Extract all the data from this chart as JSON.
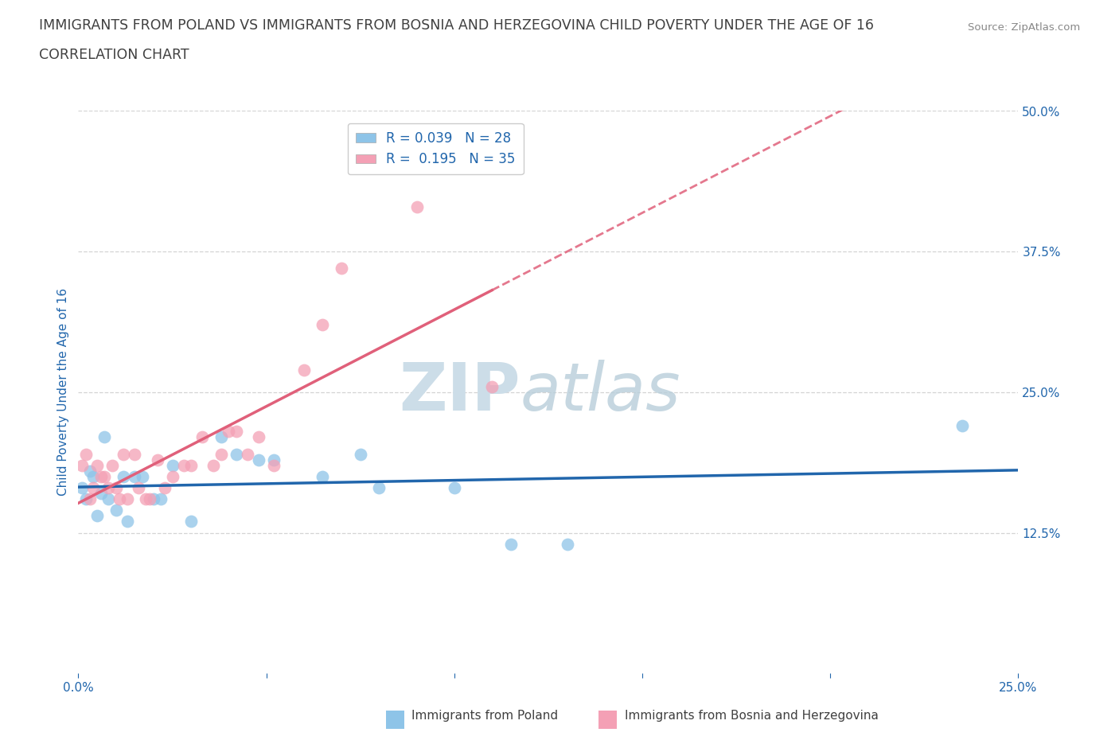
{
  "title_line1": "IMMIGRANTS FROM POLAND VS IMMIGRANTS FROM BOSNIA AND HERZEGOVINA CHILD POVERTY UNDER THE AGE OF 16",
  "title_line2": "CORRELATION CHART",
  "source_text": "Source: ZipAtlas.com",
  "ylabel": "Child Poverty Under the Age of 16",
  "xlim": [
    0.0,
    0.25
  ],
  "ylim": [
    0.0,
    0.5
  ],
  "ytick_values": [
    0.125,
    0.25,
    0.375,
    0.5
  ],
  "xtick_values": [
    0.0,
    0.25
  ],
  "xtick_intermediate": [
    0.05,
    0.1,
    0.15,
    0.2
  ],
  "r_poland": 0.039,
  "n_poland": 28,
  "r_bosnia": 0.195,
  "n_bosnia": 35,
  "color_poland": "#8ec4e8",
  "color_bosnia": "#f4a0b5",
  "line_color_poland": "#2166ac",
  "line_color_bosnia": "#e0607a",
  "watermark_color": "#ccdde8",
  "legend_label_poland": "Immigrants from Poland",
  "legend_label_bosnia": "Immigrants from Bosnia and Herzegovina",
  "poland_scatter_x": [
    0.001,
    0.002,
    0.003,
    0.004,
    0.005,
    0.006,
    0.007,
    0.008,
    0.01,
    0.012,
    0.013,
    0.015,
    0.017,
    0.02,
    0.022,
    0.025,
    0.03,
    0.038,
    0.042,
    0.048,
    0.052,
    0.065,
    0.075,
    0.08,
    0.1,
    0.115,
    0.13,
    0.235
  ],
  "poland_scatter_y": [
    0.165,
    0.155,
    0.18,
    0.175,
    0.14,
    0.16,
    0.21,
    0.155,
    0.145,
    0.175,
    0.135,
    0.175,
    0.175,
    0.155,
    0.155,
    0.185,
    0.135,
    0.21,
    0.195,
    0.19,
    0.19,
    0.175,
    0.195,
    0.165,
    0.165,
    0.115,
    0.115,
    0.22
  ],
  "bosnia_scatter_x": [
    0.001,
    0.002,
    0.003,
    0.004,
    0.005,
    0.006,
    0.007,
    0.008,
    0.009,
    0.01,
    0.011,
    0.012,
    0.013,
    0.015,
    0.016,
    0.018,
    0.019,
    0.021,
    0.023,
    0.025,
    0.028,
    0.03,
    0.033,
    0.036,
    0.038,
    0.04,
    0.042,
    0.045,
    0.048,
    0.052,
    0.06,
    0.065,
    0.07,
    0.09,
    0.11
  ],
  "bosnia_scatter_y": [
    0.185,
    0.195,
    0.155,
    0.165,
    0.185,
    0.175,
    0.175,
    0.165,
    0.185,
    0.165,
    0.155,
    0.195,
    0.155,
    0.195,
    0.165,
    0.155,
    0.155,
    0.19,
    0.165,
    0.175,
    0.185,
    0.185,
    0.21,
    0.185,
    0.195,
    0.215,
    0.215,
    0.195,
    0.21,
    0.185,
    0.27,
    0.31,
    0.36,
    0.415,
    0.255
  ],
  "grid_color": "#d4d4d4",
  "bg_color": "#ffffff",
  "title_color": "#404040",
  "axis_label_color": "#2166ac",
  "tick_label_color": "#2166ac",
  "bosnia_line_solid_end": 0.11
}
